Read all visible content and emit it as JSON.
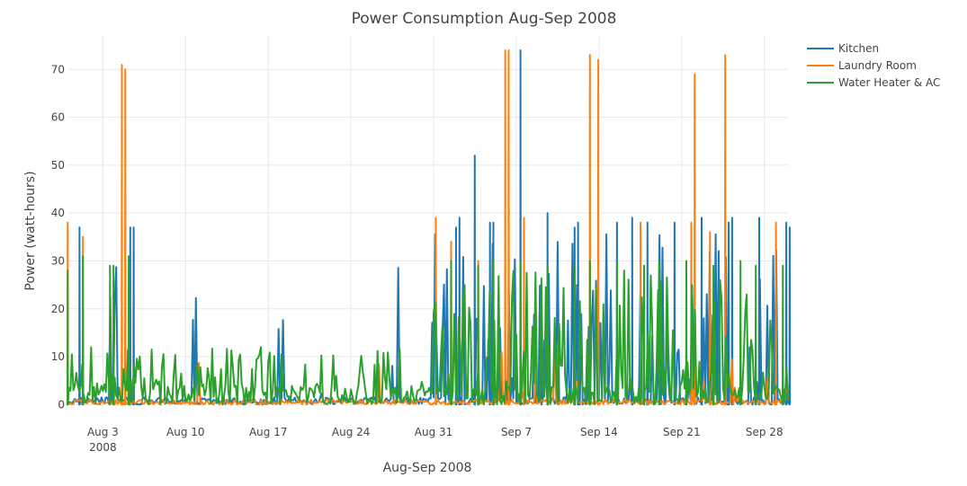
{
  "chart_data": {
    "type": "line",
    "title": "Power Consumption Aug-Sep 2008",
    "xlabel": "Aug-Sep 2008",
    "ylabel": "Power (watt-hours)",
    "xlim": [
      "2008-07-31",
      "2008-09-30"
    ],
    "ylim": [
      -0.5,
      77
    ],
    "grid": true,
    "legend_position": "top-right",
    "x_ticks": [
      {
        "date": "2008-08-03",
        "label": "Aug 3",
        "sublabel": "2008"
      },
      {
        "date": "2008-08-10",
        "label": "Aug 10"
      },
      {
        "date": "2008-08-17",
        "label": "Aug 17"
      },
      {
        "date": "2008-08-24",
        "label": "Aug 24"
      },
      {
        "date": "2008-08-31",
        "label": "Aug 31"
      },
      {
        "date": "2008-09-07",
        "label": "Sep 7"
      },
      {
        "date": "2008-09-14",
        "label": "Sep 14"
      },
      {
        "date": "2008-09-21",
        "label": "Sep 21"
      },
      {
        "date": "2008-09-28",
        "label": "Sep 28"
      }
    ],
    "y_ticks": [
      0,
      10,
      20,
      30,
      40,
      50,
      60,
      70
    ],
    "series": [
      {
        "name": "Kitchen",
        "color": "#1f77b4",
        "peaks": [
          {
            "date": "2008-08-01",
            "value": 37
          },
          {
            "date": "2008-08-05",
            "value": 37
          },
          {
            "date": "2008-08-05",
            "value": 37
          },
          {
            "date": "2008-09-01",
            "value": 37
          },
          {
            "date": "2008-09-02",
            "value": 39
          },
          {
            "date": "2008-09-03",
            "value": 52
          },
          {
            "date": "2008-09-04",
            "value": 38
          },
          {
            "date": "2008-09-05",
            "value": 38
          },
          {
            "date": "2008-09-07",
            "value": 74
          },
          {
            "date": "2008-09-09",
            "value": 40
          },
          {
            "date": "2008-09-11",
            "value": 37
          },
          {
            "date": "2008-09-12",
            "value": 38
          },
          {
            "date": "2008-09-15",
            "value": 38
          },
          {
            "date": "2008-09-16",
            "value": 39
          },
          {
            "date": "2008-09-18",
            "value": 38
          },
          {
            "date": "2008-09-20",
            "value": 38
          },
          {
            "date": "2008-09-22",
            "value": 39
          },
          {
            "date": "2008-09-24",
            "value": 38
          },
          {
            "date": "2008-09-25",
            "value": 39
          },
          {
            "date": "2008-09-27",
            "value": 39
          },
          {
            "date": "2008-09-29",
            "value": 38
          },
          {
            "date": "2008-09-30",
            "value": 37
          }
        ]
      },
      {
        "name": "Laundry Room",
        "color": "#ff7f0e",
        "peaks": [
          {
            "date": "2008-07-31",
            "value": 38
          },
          {
            "date": "2008-08-01",
            "value": 35
          },
          {
            "date": "2008-08-04",
            "value": 71
          },
          {
            "date": "2008-08-04",
            "value": 70
          },
          {
            "date": "2008-08-31",
            "value": 39
          },
          {
            "date": "2008-09-01",
            "value": 34
          },
          {
            "date": "2008-09-03",
            "value": 30
          },
          {
            "date": "2008-09-06",
            "value": 74
          },
          {
            "date": "2008-09-06",
            "value": 74
          },
          {
            "date": "2008-09-07",
            "value": 39
          },
          {
            "date": "2008-09-13",
            "value": 72
          },
          {
            "date": "2008-09-13",
            "value": 73
          },
          {
            "date": "2008-09-17",
            "value": 38
          },
          {
            "date": "2008-09-21",
            "value": 38
          },
          {
            "date": "2008-09-22",
            "value": 69
          },
          {
            "date": "2008-09-23",
            "value": 36
          },
          {
            "date": "2008-09-24",
            "value": 73
          },
          {
            "date": "2008-09-28",
            "value": 38
          }
        ]
      },
      {
        "name": "Water Heater & AC",
        "color": "#2ca02c",
        "peaks": [
          {
            "date": "2008-07-31",
            "value": 28
          },
          {
            "date": "2008-08-01",
            "value": 31
          },
          {
            "date": "2008-08-03",
            "value": 29
          },
          {
            "date": "2008-08-03",
            "value": 29
          },
          {
            "date": "2008-08-05",
            "value": 31
          },
          {
            "date": "2008-09-01",
            "value": 30
          },
          {
            "date": "2008-09-03",
            "value": 29
          },
          {
            "date": "2008-09-05",
            "value": 30
          },
          {
            "date": "2008-09-07",
            "value": 30
          },
          {
            "date": "2008-09-09",
            "value": 29
          },
          {
            "date": "2008-09-11",
            "value": 29
          },
          {
            "date": "2008-09-13",
            "value": 30
          },
          {
            "date": "2008-09-15",
            "value": 30
          },
          {
            "date": "2008-09-17",
            "value": 29
          },
          {
            "date": "2008-09-19",
            "value": 30
          },
          {
            "date": "2008-09-21",
            "value": 30
          },
          {
            "date": "2008-09-23",
            "value": 29
          },
          {
            "date": "2008-09-25",
            "value": 30
          },
          {
            "date": "2008-09-27",
            "value": 29
          },
          {
            "date": "2008-09-29",
            "value": 29
          }
        ]
      }
    ]
  }
}
